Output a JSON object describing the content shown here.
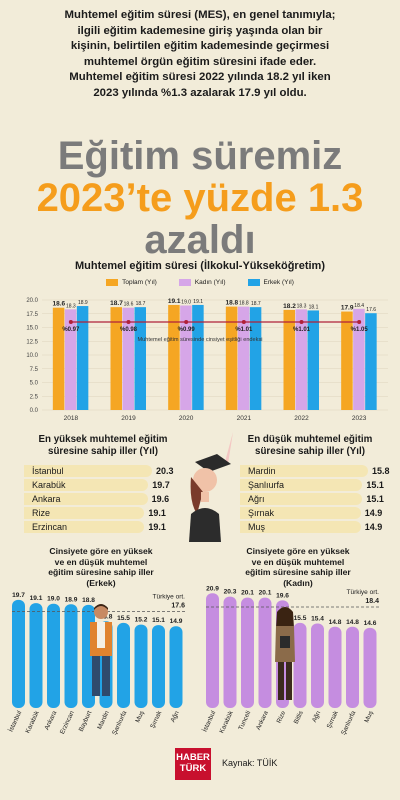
{
  "intro": [
    "Muhtemel eğitim süresi (MES), en genel tanımıyla;",
    "ilgili eğitim kademesine giriş yaşında olan bir",
    "kişinin, belirtilen eğitim kademesinde geçirmesi",
    "muhtemel örgün eğitim süresini ifade eder.",
    "Muhtemel eğitim süresi 2022 yılında 18.2 yıl iken",
    "2023 yılında %1.3 azalarak 17.9 yıl oldu."
  ],
  "headline": [
    "Eğitim süremiz",
    "2023’te yüzde 1.3",
    "azaldı"
  ],
  "colors": {
    "toplam": "#f5a623",
    "kadin": "#d6a6e8",
    "erkek": "#22a3e6",
    "line": "#b0213a",
    "rankbar": "#f4e6b4",
    "background": "#f2ecd9",
    "headline_gray": "#7b7b7b",
    "headline_orange": "#f59d1c"
  },
  "footer": {
    "logo_line1": "HABER",
    "logo_line2": "TÜRK",
    "source": "Kaynak: TÜİK"
  },
  "chart_data": [
    {
      "type": "bar",
      "title": "Muhtemel eğitim süresi (İlkokul-Yükseköğretim)",
      "categories": [
        "2018",
        "2019",
        "2020",
        "2021",
        "2022",
        "2023"
      ],
      "series": [
        {
          "name": "Toplam (Yıl)",
          "values": [
            18.6,
            18.7,
            19.1,
            18.8,
            18.2,
            17.9
          ]
        },
        {
          "name": "Kadın (Yıl)",
          "values": [
            18.3,
            18.6,
            19.0,
            18.8,
            18.3,
            18.4
          ]
        },
        {
          "name": "Erkek (Yıl)",
          "values": [
            18.9,
            18.7,
            19.1,
            18.7,
            18.1,
            17.6
          ]
        }
      ],
      "line_series": {
        "name": "Muhtemel eğitim süresinde cinsiyet eşitliği endeksi",
        "values": [
          0.97,
          0.98,
          0.99,
          1.01,
          1.01,
          1.05
        ],
        "labels": [
          "%0.97",
          "%0.98",
          "%0.99",
          "%1.01",
          "%1.01",
          "%1.05"
        ]
      },
      "yticks": [
        "0.0",
        "2.5",
        "5.0",
        "7.5",
        "10.0",
        "12.5",
        "15.0",
        "17.5",
        "20.0"
      ],
      "ylim": [
        0,
        20
      ]
    },
    {
      "type": "bar",
      "title": "En yüksek muhtemel eğitim süresine sahip iller (Yıl)",
      "categories": [
        "İstanbul",
        "Karabük",
        "Ankara",
        "Rize",
        "Erzincan"
      ],
      "values": [
        20.3,
        19.7,
        19.6,
        19.1,
        19.1
      ],
      "labels": [
        "20.3",
        "19.7",
        "19.6",
        "19.1",
        "19.1"
      ]
    },
    {
      "type": "bar",
      "title": "En düşük muhtemel eğitim süresine sahip iller (Yıl)",
      "categories": [
        "Mardin",
        "Şanlıurfa",
        "Ağrı",
        "Şırnak",
        "Muş"
      ],
      "values": [
        15.8,
        15.1,
        15.1,
        14.9,
        14.9
      ],
      "labels": [
        "15.8",
        "15.1",
        "15.1",
        "14.9",
        "14.9"
      ]
    },
    {
      "type": "bar",
      "title": "Cinsiyete göre en yüksek ve en düşük muhtemel eğitim süresine sahip iller (Erkek)",
      "categories": [
        "İstanbul",
        "Karabük",
        "Ankara",
        "Erzincan",
        "Bayburt",
        "Mardin",
        "Şanlıurfa",
        "Muş",
        "Şırnak",
        "Ağrı"
      ],
      "values": [
        19.7,
        19.1,
        19.0,
        18.9,
        18.8,
        15.8,
        15.5,
        15.2,
        15.1,
        14.9
      ],
      "labels": [
        "19.7",
        "19.1",
        "19.0",
        "18.9",
        "18.8",
        "15.8",
        "15.5",
        "15.2",
        "15.1",
        "14.9"
      ],
      "reference": {
        "label": "Türkiye ort.",
        "value": 17.6,
        "value_label": "17.6"
      }
    },
    {
      "type": "bar",
      "title": "Cinsiyete göre en yüksek ve en düşük muhtemel eğitim süresine sahip iller (Kadın)",
      "categories": [
        "İstanbul",
        "Karabük",
        "Tunceli",
        "Ankara",
        "Rize",
        "Bitlis",
        "Ağrı",
        "Şırnak",
        "Şanlıurfa",
        "Muş"
      ],
      "values": [
        20.9,
        20.3,
        20.1,
        20.1,
        19.6,
        15.5,
        15.4,
        14.8,
        14.8,
        14.6
      ],
      "labels": [
        "20.9",
        "20.3",
        "20.1",
        "20.1",
        "19.6",
        "15.5",
        "15.4",
        "14.8",
        "14.8",
        "14.6"
      ],
      "reference": {
        "label": "Türkiye ort.",
        "value": 18.4,
        "value_label": "18.4"
      }
    }
  ]
}
